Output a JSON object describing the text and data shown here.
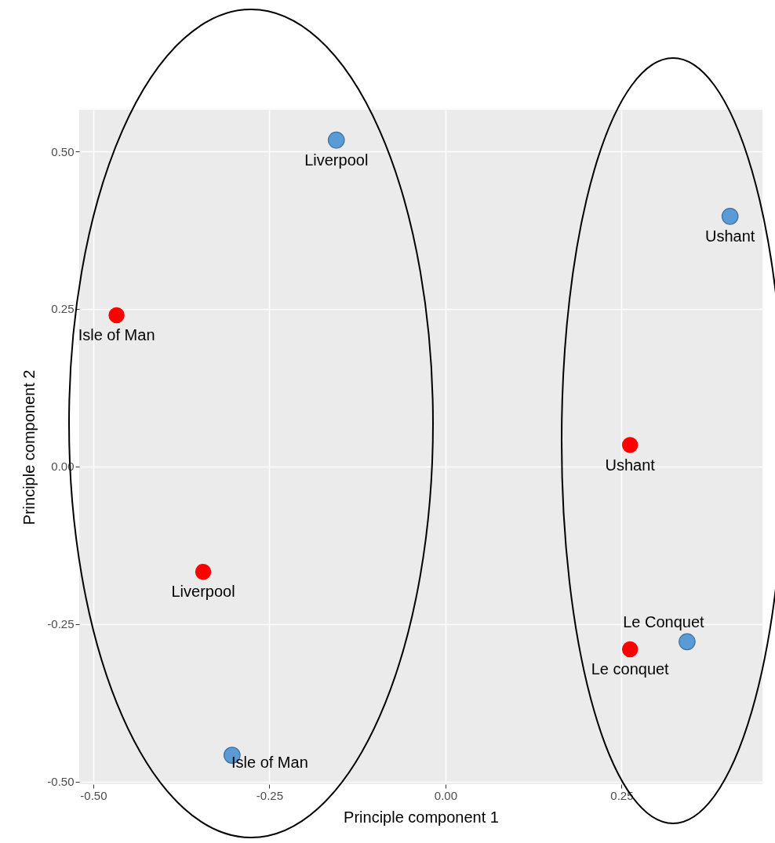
{
  "chart_data": {
    "type": "scatter",
    "xlabel": "Principle component 1",
    "ylabel": "Principle component 2",
    "xlim": [
      -0.52,
      0.45
    ],
    "ylim": [
      -0.504,
      0.566
    ],
    "xticks": [
      {
        "value": -0.5,
        "label": "-0.50"
      },
      {
        "value": -0.25,
        "label": "-0.25"
      },
      {
        "value": 0,
        "label": "0.00"
      },
      {
        "value": 0.25,
        "label": "0.25"
      }
    ],
    "yticks": [
      {
        "value": -0.5,
        "label": "-0.50"
      },
      {
        "value": -0.25,
        "label": "-0.25"
      },
      {
        "value": 0,
        "label": "0.00"
      },
      {
        "value": 0.25,
        "label": "0.25"
      },
      {
        "value": 0.5,
        "label": "0.50"
      }
    ],
    "grid": true,
    "marker": "circle",
    "series": [
      {
        "color": "#5b9bd5",
        "x": [
          -0.155,
          0.404,
          0.343,
          -0.303
        ],
        "values": [
          0.518,
          0.397,
          -0.278,
          -0.458
        ]
      },
      {
        "color": "#ff0000",
        "x": [
          -0.467,
          -0.344,
          0.262,
          0.262
        ],
        "values": [
          0.24,
          -0.167,
          0.034,
          -0.29
        ]
      }
    ],
    "annotations": [
      {
        "text": "Liverpool",
        "x": -0.155,
        "y": 0.518
      },
      {
        "text": "Ushant",
        "x": 0.404,
        "y": 0.397
      },
      {
        "text": "Le Conquet",
        "x": 0.343,
        "y": -0.278
      },
      {
        "text": "Isle of Man",
        "x": -0.303,
        "y": -0.458
      },
      {
        "text": "Isle of Man",
        "x": -0.467,
        "y": 0.24
      },
      {
        "text": "Liverpool",
        "x": -0.344,
        "y": -0.167
      },
      {
        "text": "Ushant",
        "x": 0.262,
        "y": 0.034
      },
      {
        "text": "Le conquet",
        "x": 0.262,
        "y": -0.29
      }
    ]
  }
}
